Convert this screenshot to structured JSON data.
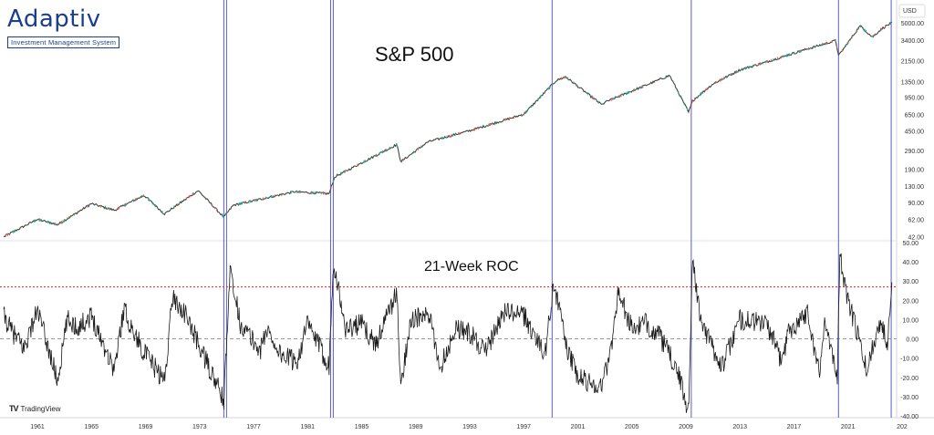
{
  "logo": {
    "name": "Adaptiv",
    "tagline": "Investment Management System"
  },
  "brand": {
    "tradingview": "TradingView"
  },
  "colors": {
    "price_line": "#3a4a3a",
    "up": "#26a69a",
    "down": "#ef5350",
    "roc_line": "#1a1a1a",
    "vline": "#5a5ad6",
    "threshold": "#e53935",
    "zero": "#8a8a8a",
    "axis_text": "#333333",
    "logo": "#1b3f8f"
  },
  "chart_data": [
    {
      "type": "line",
      "title": "S&P 500",
      "currency": "USD",
      "scale": "log",
      "x_tick_labels": [
        "1961",
        "1965",
        "1969",
        "1973",
        "1977",
        "1981",
        "1985",
        "1989",
        "1993",
        "1997",
        "2001",
        "2005",
        "2009",
        "2013",
        "2017",
        "2021",
        "202"
      ],
      "y_tick_labels": [
        "5000.00",
        "3400.00",
        "2150.00",
        "1350.00",
        "950.00",
        "650.00",
        "450.00",
        "290.00",
        "190.00",
        "130.00",
        "90.00",
        "62.00",
        "42.00"
      ],
      "series": [
        {
          "x": [
            1958.5,
            1961,
            1962.5,
            1965,
            1966.7,
            1968.9,
            1970.4,
            1972.9,
            1974.8,
            1975.5,
            1980,
            1982.6,
            1983,
            1987.6,
            1987.9,
            1989.9,
            1993,
            1997,
            1999.4,
            2000.1,
            2002.8,
            2003,
            2007.8,
            2009.2,
            2009.5,
            2011,
            2013,
            2015,
            2018,
            2020.1,
            2020.3,
            2021.9,
            2022.8,
            2023.5,
            2024.2
          ],
          "y": [
            42,
            62,
            55,
            88,
            76,
            106,
            70,
            118,
            65,
            85,
            115,
            110,
            160,
            330,
            225,
            350,
            450,
            650,
            1380,
            1500,
            800,
            850,
            1550,
            680,
            880,
            1280,
            1750,
            2100,
            2800,
            3380,
            2400,
            4700,
            3650,
            4400,
            5000
          ]
        }
      ],
      "vertical_lines": [
        1974.8,
        1975.0,
        1982.7,
        1982.9,
        1999.1,
        2009.4,
        2020.3,
        2024.2
      ],
      "grid": false
    },
    {
      "type": "line",
      "title": "21-Week ROC",
      "y_tick_labels": [
        "50.00",
        "40.00",
        "30.00",
        "20.00",
        "10.00",
        "0.00",
        "-10.00",
        "-20.00",
        "-30.00",
        "-40.00"
      ],
      "ylim": [
        -40,
        50
      ],
      "threshold": 27,
      "zero_line": 0,
      "series": [
        {
          "x": [
            1958.5,
            1959,
            1960,
            1961,
            1962.5,
            1963.2,
            1964,
            1965,
            1966.7,
            1967.4,
            1968,
            1969,
            1970.4,
            1971,
            1972,
            1973.5,
            1974.8,
            1975.3,
            1976,
            1977.5,
            1978,
            1979,
            1980.2,
            1981,
            1982.6,
            1982.9,
            1983.8,
            1985,
            1986,
            1987.6,
            1987.9,
            1988.6,
            1990,
            1990.8,
            1992,
            1993,
            1994.2,
            1995.5,
            1997,
            1998.6,
            1999.2,
            2000.2,
            2001,
            2002.7,
            2003.4,
            2004,
            2005,
            2006,
            2007,
            2008.3,
            2009.2,
            2009.5,
            2010,
            2011,
            2011.7,
            2013,
            2015,
            2016.1,
            2016.6,
            2018,
            2018.9,
            2019.3,
            2020.2,
            2020.4,
            2020.8,
            2021.5,
            2022.4,
            2022.8,
            2023.4,
            2023.9,
            2024.2
          ],
          "y": [
            12,
            5,
            -5,
            15,
            -22,
            10,
            6,
            12,
            -16,
            16,
            5,
            -8,
            -22,
            22,
            12,
            -12,
            -32,
            38,
            8,
            -6,
            5,
            -8,
            -12,
            8,
            -14,
            41,
            5,
            8,
            -3,
            24,
            -26,
            10,
            12,
            -15,
            6,
            3,
            -7,
            14,
            12,
            -8,
            30,
            -5,
            -20,
            -25,
            -8,
            25,
            5,
            8,
            2,
            -15,
            -38,
            45,
            12,
            -5,
            -14,
            10,
            8,
            -12,
            4,
            14,
            -19,
            12,
            -22,
            46,
            25,
            8,
            -17,
            -5,
            10,
            -3,
            28
          ]
        }
      ],
      "vertical_lines": [
        1974.8,
        1975.0,
        1982.7,
        1982.9,
        1999.1,
        2009.4,
        2020.3,
        2024.2
      ]
    }
  ]
}
